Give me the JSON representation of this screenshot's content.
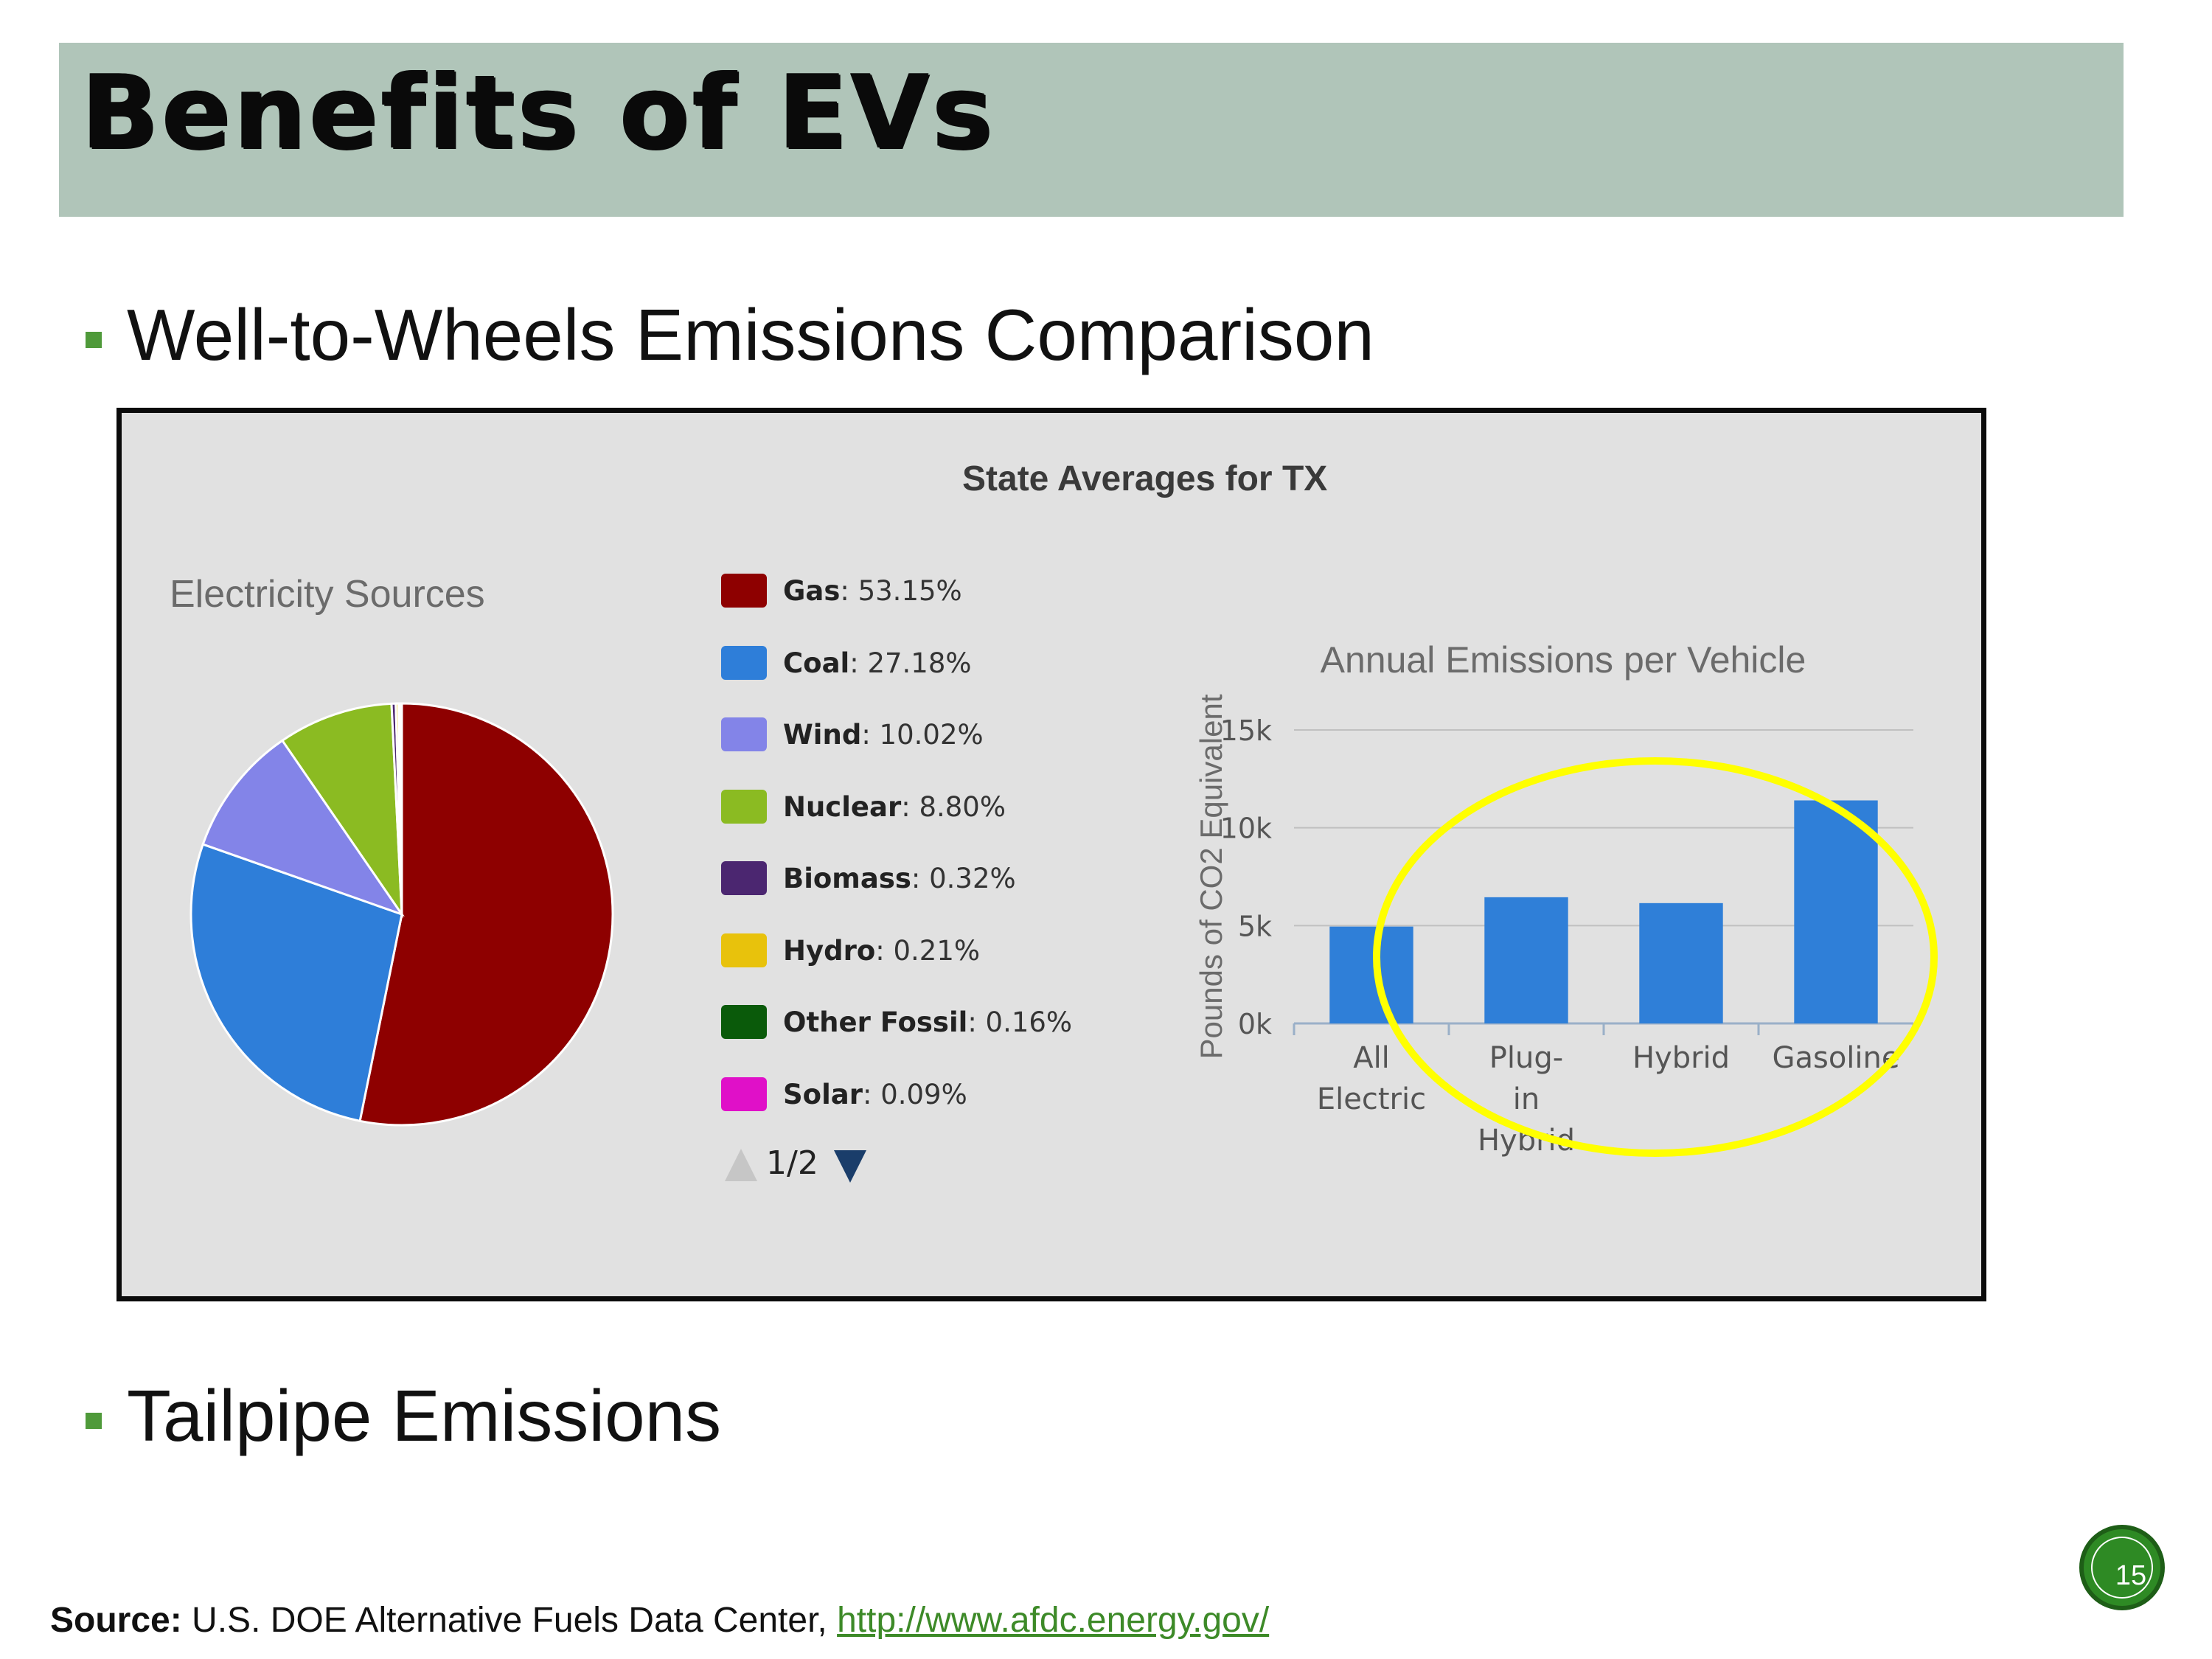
{
  "title": "Benefits of EVs",
  "bullets": [
    "Well-to-Wheels Emissions Comparison",
    "Tailpipe Emissions"
  ],
  "panel_title": "State Averages for TX",
  "colors": {
    "title_bar": "#b0c5b9",
    "bullet": "#4f9a3a",
    "bar": "#2f7fd8",
    "highlight_ellipse": "#ffff00",
    "link": "#3d8a28"
  },
  "chart_data": [
    {
      "type": "pie",
      "title": "Electricity Sources",
      "slices": [
        {
          "label": "Gas",
          "value": 53.15,
          "display": "53.15%",
          "color": "#8e0000"
        },
        {
          "label": "Coal",
          "value": 27.18,
          "display": "27.18%",
          "color": "#2e7ed9"
        },
        {
          "label": "Wind",
          "value": 10.02,
          "display": "10.02%",
          "color": "#8384e8"
        },
        {
          "label": "Nuclear",
          "value": 8.8,
          "display": "8.80%",
          "color": "#8bbb22"
        },
        {
          "label": "Biomass",
          "value": 0.32,
          "display": "0.32%",
          "color": "#4b2670"
        },
        {
          "label": "Hydro",
          "value": 0.21,
          "display": "0.21%",
          "color": "#e8c20c"
        },
        {
          "label": "Other Fossil",
          "value": 0.16,
          "display": "0.16%",
          "color": "#0a5a0a"
        },
        {
          "label": "Solar",
          "value": 0.09,
          "display": "0.09%",
          "color": "#e010c8"
        }
      ],
      "legend_pager": "1/2"
    },
    {
      "type": "bar",
      "title": "Annual Emissions per Vehicle",
      "ylabel": "Pounds of CO2 Equivalent",
      "categories": [
        "All Electric",
        "Plug-in Hybrid",
        "Hybrid",
        "Gasoline"
      ],
      "category_lines": [
        [
          "All",
          "Electric"
        ],
        [
          "Plug-",
          "in",
          "Hybrid"
        ],
        [
          "Hybrid"
        ],
        [
          "Gasoline"
        ]
      ],
      "values": [
        4950,
        6450,
        6150,
        11400
      ],
      "yticks": [
        {
          "value": 0,
          "label": "0k"
        },
        {
          "value": 5000,
          "label": "5k"
        },
        {
          "value": 10000,
          "label": "10k"
        },
        {
          "value": 15000,
          "label": "15k"
        }
      ],
      "ylim": [
        0,
        15000
      ],
      "grid": true,
      "highlight": [
        "All Electric",
        "Plug-in Hybrid",
        "Hybrid"
      ]
    }
  ],
  "slide_number": "15",
  "source": {
    "label": "Source:",
    "text": " U.S. DOE Alternative Fuels Data Center, ",
    "link": "http://www.afdc.energy.gov/"
  }
}
